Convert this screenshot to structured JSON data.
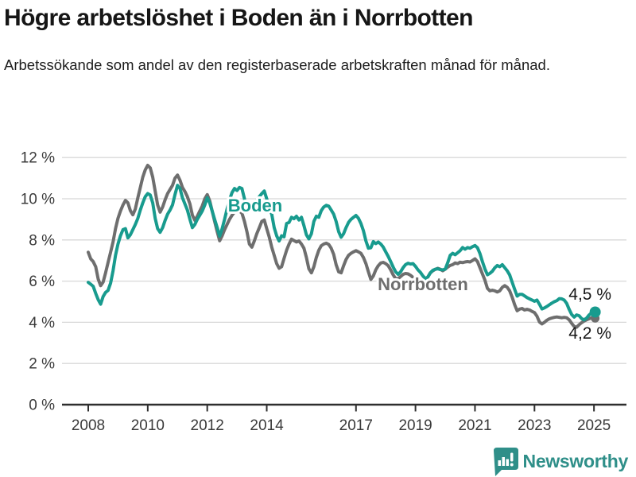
{
  "header": {
    "title": "Högre arbetslöshet i Boden än i Norrbotten",
    "subtitle": "Arbetssökande som andel av den registerbaserade arbetskraften månad för månad."
  },
  "footer": {
    "brand": "Newsworthy",
    "brand_color": "#2F8F89",
    "brand_icon": "bar-chart-speech-bubble-icon"
  },
  "colors": {
    "boden": "#189B8E",
    "norrbotten": "#6E6E6E",
    "grid": "#d8d8d8",
    "axis": "#2e2e2e",
    "tick_text": "#3a3a3a",
    "annotation_text": "#161616",
    "background": "#ffffff"
  },
  "chart_data": {
    "type": "line",
    "title": "",
    "xlabel": "",
    "ylabel": "",
    "x_start_year": 2008,
    "frequency": "monthly",
    "x_ticks": [
      2008,
      2010,
      2012,
      2014,
      2017,
      2019,
      2021,
      2023,
      2025
    ],
    "x_tick_labels": [
      "2008",
      "2010",
      "2012",
      "2014",
      "2017",
      "2019",
      "2021",
      "2023",
      "2025"
    ],
    "y_ticks": [
      0,
      2,
      4,
      6,
      8,
      10,
      12
    ],
    "y_tick_labels": [
      "0 %",
      "2 %",
      "4 %",
      "6 %",
      "8 %",
      "10 %",
      "12 %"
    ],
    "ylim": [
      0,
      12
    ],
    "xlim": [
      2007.1,
      2026.2
    ],
    "grid": true,
    "series": [
      {
        "name": "Norrbotten",
        "color": "#6E6E6E",
        "end_dot": true,
        "end_label": "4,2 %",
        "values": [
          7.4,
          7.08,
          6.95,
          6.7,
          6.1,
          5.78,
          5.95,
          6.4,
          6.9,
          7.4,
          7.9,
          8.55,
          9.05,
          9.4,
          9.7,
          9.92,
          9.8,
          9.42,
          9.22,
          9.5,
          10.05,
          10.55,
          11.05,
          11.4,
          11.62,
          11.5,
          11.05,
          10.37,
          9.7,
          9.35,
          9.6,
          9.95,
          10.25,
          10.45,
          10.65,
          11.0,
          11.15,
          10.9,
          10.55,
          10.35,
          10.1,
          9.75,
          9.2,
          8.95,
          9.15,
          9.4,
          9.65,
          10.0,
          10.2,
          9.9,
          9.4,
          8.9,
          8.4,
          7.96,
          8.2,
          8.5,
          8.75,
          9.0,
          9.2,
          9.35,
          9.45,
          9.4,
          9.3,
          8.9,
          8.4,
          7.8,
          7.65,
          7.95,
          8.3,
          8.6,
          8.9,
          8.97,
          8.55,
          8.15,
          7.65,
          7.25,
          6.85,
          6.62,
          6.7,
          7.1,
          7.5,
          7.8,
          8.04,
          7.97,
          7.9,
          7.95,
          7.8,
          7.6,
          7.15,
          6.6,
          6.4,
          6.7,
          7.15,
          7.5,
          7.72,
          7.8,
          7.84,
          7.78,
          7.6,
          7.3,
          6.8,
          6.45,
          6.4,
          6.75,
          7.05,
          7.25,
          7.35,
          7.42,
          7.48,
          7.42,
          7.35,
          7.15,
          6.85,
          6.45,
          6.08,
          6.25,
          6.55,
          6.75,
          6.88,
          6.91,
          6.85,
          6.75,
          6.55,
          6.3,
          6.12,
          6.12,
          6.22,
          6.33,
          6.37,
          6.35,
          6.28,
          6.18,
          6.1,
          6.04,
          6.0,
          6.0,
          6.05,
          6.2,
          6.4,
          6.5,
          6.57,
          6.62,
          6.58,
          6.5,
          6.58,
          6.68,
          6.76,
          6.8,
          6.88,
          6.85,
          6.92,
          6.9,
          6.93,
          6.95,
          6.93,
          7.0,
          7.08,
          6.95,
          6.65,
          6.35,
          6.05,
          5.65,
          5.53,
          5.56,
          5.53,
          5.47,
          5.53,
          5.7,
          5.78,
          5.7,
          5.53,
          5.22,
          4.85,
          4.56,
          4.64,
          4.67,
          4.6,
          4.63,
          4.6,
          4.53,
          4.47,
          4.3,
          4.02,
          3.92,
          4.0,
          4.1,
          4.17,
          4.21,
          4.24,
          4.26,
          4.24,
          4.22,
          4.24,
          4.22,
          4.12,
          3.95,
          3.8,
          3.76,
          3.88,
          3.98,
          4.06,
          4.12,
          4.17,
          4.22,
          4.2
        ]
      },
      {
        "name": "Boden",
        "color": "#189B8E",
        "end_dot": true,
        "end_label": "4,5 %",
        "values": [
          5.94,
          5.85,
          5.75,
          5.4,
          5.1,
          4.88,
          5.25,
          5.45,
          5.55,
          5.9,
          6.5,
          7.25,
          7.8,
          8.2,
          8.5,
          8.55,
          8.1,
          8.25,
          8.5,
          8.75,
          9.05,
          9.45,
          9.8,
          10.1,
          10.25,
          10.18,
          9.8,
          9.05,
          8.55,
          8.37,
          8.6,
          8.95,
          9.25,
          9.45,
          9.7,
          10.2,
          10.65,
          10.5,
          10.05,
          9.75,
          9.45,
          9.0,
          8.6,
          8.75,
          9.0,
          9.2,
          9.4,
          9.7,
          10.05,
          9.8,
          9.4,
          9.0,
          8.6,
          8.18,
          8.55,
          9.0,
          9.5,
          9.95,
          10.3,
          10.5,
          10.4,
          10.55,
          10.5,
          10.0,
          9.35,
          9.5,
          9.6,
          9.75,
          9.9,
          10.1,
          10.25,
          10.38,
          10.0,
          9.5,
          9.25,
          8.6,
          8.2,
          7.95,
          8.2,
          8.15,
          8.8,
          8.85,
          9.1,
          9.03,
          9.15,
          8.97,
          9.1,
          8.7,
          8.25,
          8.05,
          8.3,
          8.9,
          9.15,
          9.1,
          9.42,
          9.6,
          9.68,
          9.64,
          9.45,
          9.25,
          8.9,
          8.4,
          8.13,
          8.3,
          8.6,
          8.85,
          9.0,
          9.1,
          9.19,
          9.05,
          8.8,
          8.45,
          7.95,
          7.6,
          7.62,
          7.92,
          7.82,
          7.9,
          7.8,
          7.65,
          7.42,
          7.2,
          6.95,
          6.68,
          6.45,
          6.33,
          6.45,
          6.65,
          6.8,
          6.87,
          6.83,
          6.85,
          6.72,
          6.55,
          6.42,
          6.25,
          6.12,
          6.2,
          6.4,
          6.52,
          6.58,
          6.6,
          6.56,
          6.55,
          6.58,
          6.9,
          7.25,
          7.35,
          7.28,
          7.38,
          7.48,
          7.63,
          7.55,
          7.63,
          7.6,
          7.67,
          7.73,
          7.62,
          7.34,
          6.95,
          6.6,
          6.31,
          6.38,
          6.48,
          6.65,
          6.76,
          6.7,
          6.8,
          6.65,
          6.5,
          6.3,
          5.95,
          5.6,
          5.27,
          5.36,
          5.36,
          5.28,
          5.2,
          5.14,
          5.08,
          5.02,
          5.08,
          4.88,
          4.65,
          4.7,
          4.77,
          4.85,
          4.93,
          5.0,
          5.05,
          5.15,
          5.14,
          5.08,
          4.92,
          4.62,
          4.38,
          4.25,
          4.36,
          4.32,
          4.18,
          4.12,
          4.2,
          4.35,
          4.45,
          4.5
        ]
      }
    ],
    "series_labels": [
      {
        "text": "Boden",
        "series": "Boden",
        "x": 2013.6,
        "y": 9.72
      },
      {
        "text": "Norrbotten",
        "series": "Norrbotten",
        "x": 2019.25,
        "y": 5.88
      }
    ],
    "end_value_labels": [
      {
        "text": "4,5 %",
        "series": "Boden",
        "value": 4.5
      },
      {
        "text": "4,2 %",
        "series": "Norrbotten",
        "value": 4.2
      }
    ],
    "legend_position": "inline-labels"
  }
}
